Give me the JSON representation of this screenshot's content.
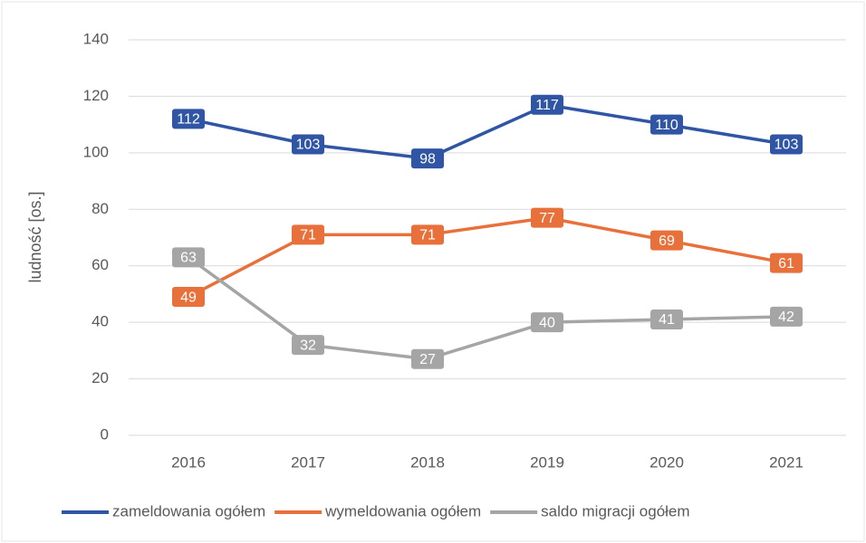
{
  "chart_data": {
    "type": "line",
    "y_label": "ludność [os.]",
    "categories": [
      "2016",
      "2017",
      "2018",
      "2019",
      "2020",
      "2021"
    ],
    "series": [
      {
        "name": "zameldowania ogółem",
        "color": "#2f55a4",
        "values": [
          112,
          103,
          98,
          117,
          110,
          103
        ]
      },
      {
        "name": "wymeldowania ogółem",
        "color": "#e8703a",
        "values": [
          49,
          71,
          71,
          77,
          69,
          61
        ]
      },
      {
        "name": "saldo migracji ogółem",
        "color": "#a5a5a5",
        "values": [
          63,
          32,
          27,
          40,
          41,
          42
        ]
      }
    ],
    "ylim": [
      0,
      140
    ],
    "yticks": [
      0,
      20,
      40,
      60,
      80,
      100,
      120,
      140
    ],
    "grid": true,
    "legend": "bottom"
  }
}
